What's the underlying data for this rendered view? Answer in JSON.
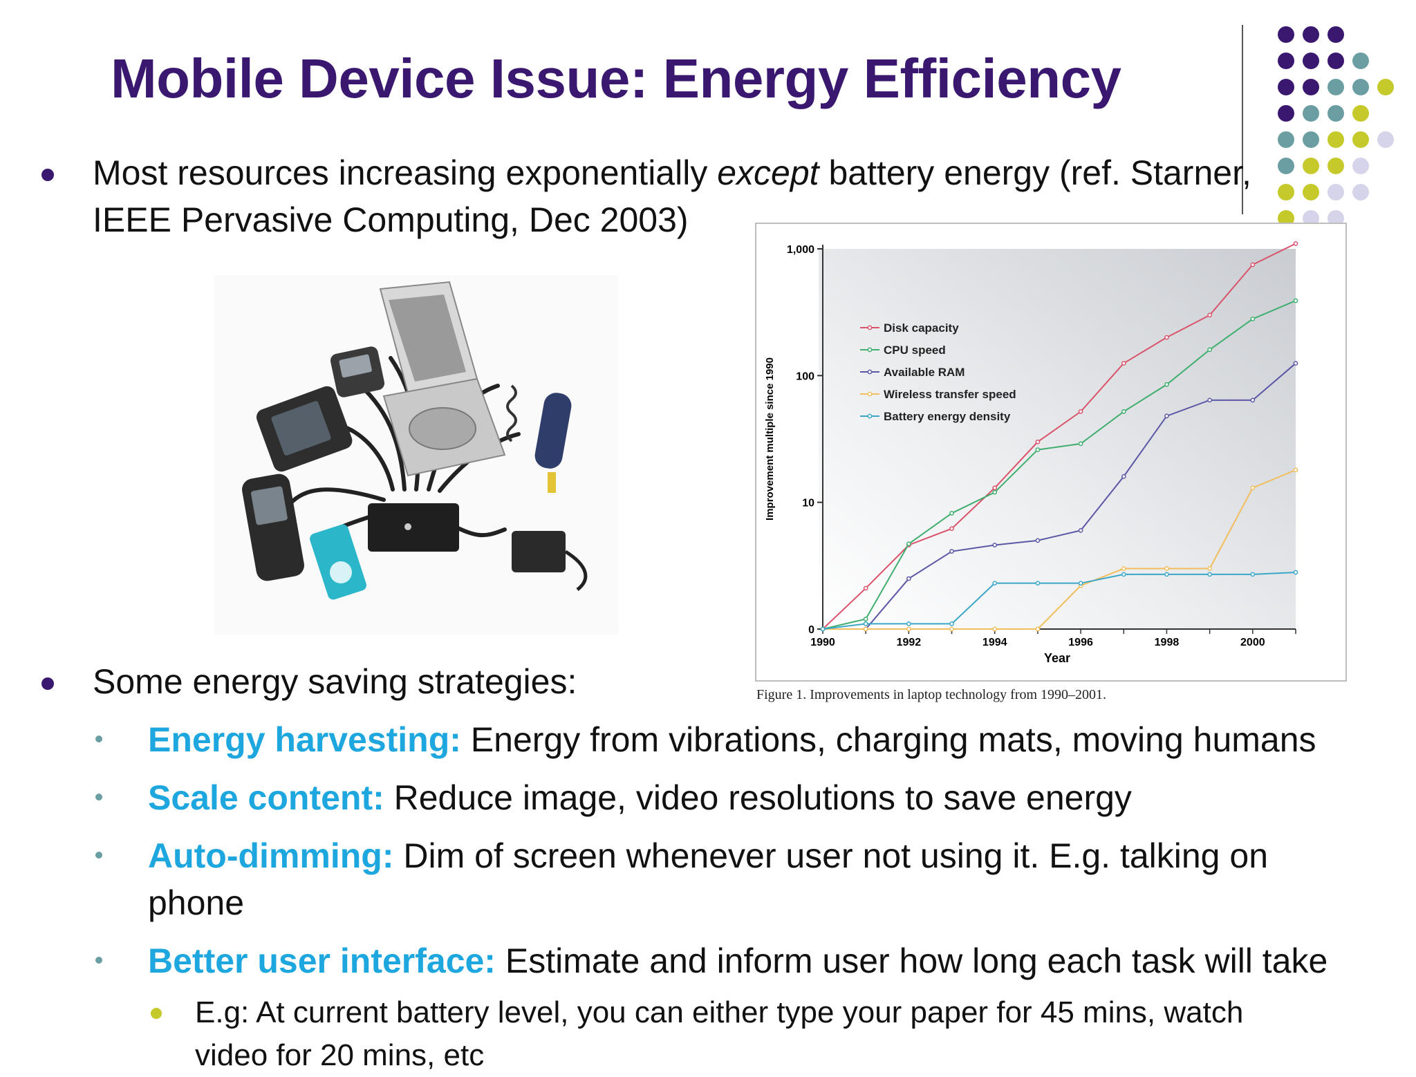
{
  "slide": {
    "title": "Mobile Device Issue: Energy Efficiency",
    "bullet1": {
      "before": "Most resources increasing exponentially ",
      "em": "except",
      "after": " battery energy (ref. Starner,",
      "line2": "IEEE Pervasive Computing, Dec 2003)"
    },
    "bullet2": "Some energy saving strategies:",
    "strategies": [
      {
        "key": "Energy harvesting:",
        "text": " Energy from vibrations, charging mats, moving humans"
      },
      {
        "key": "Scale content:",
        "text": " Reduce image, video resolutions to save energy"
      },
      {
        "key": "Auto-dimming:",
        "text": " Dim of screen whenever user not using it. E.g. talking on",
        "cont": "phone"
      },
      {
        "key": "Better user interface:",
        "text": " Estimate and inform user how long each task will take"
      }
    ],
    "example": {
      "line1": "E.g: At current battery level, you can either type your paper for 45 mins, watch",
      "line2": "video for 20 mins, etc"
    },
    "colors": {
      "title": "#3a1870",
      "keyword": "#1ea7de",
      "bullet_dark": "#3a1870",
      "bullet_teal": "#6b9ea3",
      "bullet_yellow": "#c5c92a",
      "dot_purple": "#3a1870",
      "dot_teal": "#6b9ea3",
      "dot_yellow": "#c5c92a",
      "dot_lavender": "#d6d4ea"
    },
    "photo": {
      "icon": "mobile-devices-photo"
    }
  },
  "chart_data": {
    "type": "line",
    "title": "",
    "xlabel": "Year",
    "ylabel": "Improvement multiple since 1990",
    "caption": "Figure 1. Improvements in laptop technology from 1990–2001.",
    "yscale": "log",
    "xlim": [
      1990,
      2001
    ],
    "xticks": [
      "1990",
      "1992",
      "1994",
      "1996",
      "1998",
      "2000"
    ],
    "yticks": [
      "0",
      "10",
      "100",
      "1,000"
    ],
    "legend_position": "top-left",
    "grid": false,
    "x": [
      1990,
      1991,
      1992,
      1993,
      1994,
      1995,
      1996,
      1997,
      1998,
      1999,
      2000,
      2001
    ],
    "series": [
      {
        "name": "Disk capacity",
        "color": "#d9536a",
        "values": [
          1,
          2.1,
          4.6,
          6.2,
          13,
          30,
          52,
          125,
          200,
          300,
          750,
          1100
        ]
      },
      {
        "name": "CPU speed",
        "color": "#3fae6e",
        "values": [
          1,
          1.2,
          4.7,
          8.2,
          12,
          26,
          29,
          52,
          85,
          160,
          280,
          390
        ]
      },
      {
        "name": "Available RAM",
        "color": "#5b57a6",
        "values": [
          1,
          1,
          2.5,
          4.1,
          4.6,
          5,
          6,
          16,
          48,
          64,
          64,
          125
        ]
      },
      {
        "name": "Wireless transfer speed",
        "color": "#f2bd5c",
        "values": [
          1,
          1,
          1,
          1,
          1,
          1,
          2.2,
          3,
          3,
          3,
          13,
          18
        ]
      },
      {
        "name": "Battery energy density",
        "color": "#3aa7c7",
        "values": [
          1,
          1.1,
          1.1,
          1.1,
          2.3,
          2.3,
          2.3,
          2.7,
          2.7,
          2.7,
          2.7,
          2.8
        ]
      }
    ]
  }
}
